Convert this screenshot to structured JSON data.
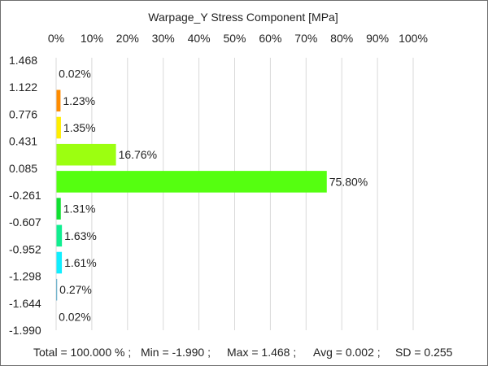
{
  "chart_data": {
    "type": "bar",
    "orientation": "horizontal",
    "title": "Warpage_Y Stress Component [MPa]",
    "x_axis": {
      "position": "top",
      "range": [
        0,
        100
      ],
      "tick_labels": [
        "0%",
        "10%",
        "20%",
        "30%",
        "40%",
        "50%",
        "60%",
        "70%",
        "80%",
        "90%",
        "100%"
      ]
    },
    "bin_edges": [
      "1.468",
      "1.122",
      "0.776",
      "0.431",
      "0.085",
      "-0.261",
      "-0.607",
      "-0.952",
      "-1.298",
      "-1.644",
      "-1.990"
    ],
    "bars": [
      {
        "value": 0.02,
        "label": "0.02%",
        "color": "#ff0000"
      },
      {
        "value": 1.23,
        "label": "1.23%",
        "color": "#ff8c00"
      },
      {
        "value": 1.35,
        "label": "1.35%",
        "color": "#ffee00"
      },
      {
        "value": 16.76,
        "label": "16.76%",
        "color": "#9cff10"
      },
      {
        "value": 75.8,
        "label": "75.80%",
        "color": "#55ff10"
      },
      {
        "value": 1.31,
        "label": "1.31%",
        "color": "#10e030"
      },
      {
        "value": 1.63,
        "label": "1.63%",
        "color": "#10ee90"
      },
      {
        "value": 1.61,
        "label": "1.61%",
        "color": "#10eeff"
      },
      {
        "value": 0.27,
        "label": "0.27%",
        "color": "#1090c0"
      },
      {
        "value": 0.02,
        "label": "0.02%",
        "color": "#1040ff"
      }
    ],
    "grid": true,
    "gridline_color": "#d9d9d9"
  },
  "footer": {
    "total": "Total = 100.000 % ;",
    "min": "Min = -1.990 ;",
    "max": "Max = 1.468 ;",
    "avg": "Avg = 0.002 ;",
    "sd": "SD = 0.255"
  }
}
